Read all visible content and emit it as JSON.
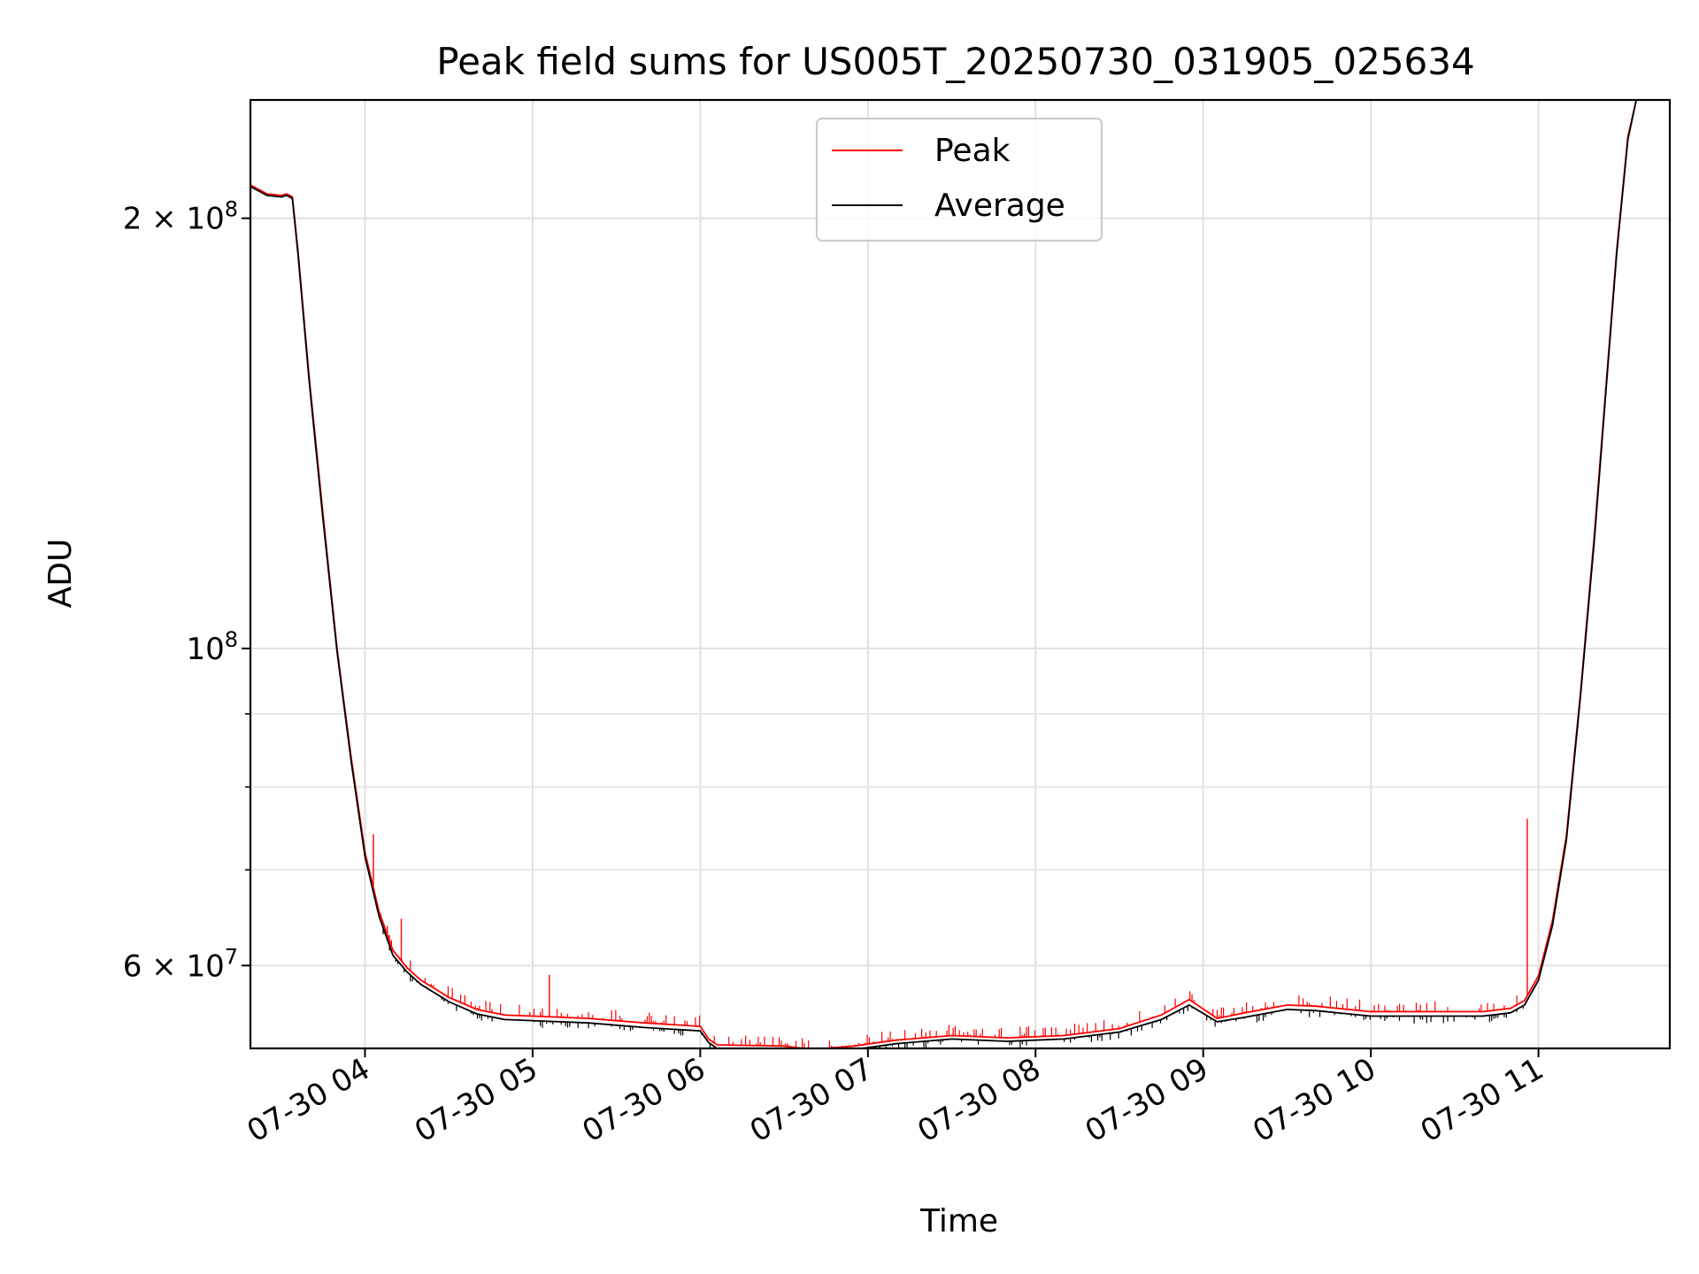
{
  "chart_data": {
    "type": "line",
    "title": "Peak field sums for US005T_20250730_031905_025634",
    "xlabel": "Time",
    "ylabel": "ADU",
    "yscale": "log",
    "xlim": [
      "2025-07-30 03:19",
      "2025-07-30 11:47"
    ],
    "ylim": [
      52500000,
      242000000
    ],
    "grid": true,
    "legend_position": "top-center",
    "x_ticks": [
      {
        "t": "2025-07-30 04:00",
        "label": "07-30 04"
      },
      {
        "t": "2025-07-30 05:00",
        "label": "07-30 05"
      },
      {
        "t": "2025-07-30 06:00",
        "label": "07-30 06"
      },
      {
        "t": "2025-07-30 07:00",
        "label": "07-30 07"
      },
      {
        "t": "2025-07-30 08:00",
        "label": "07-30 08"
      },
      {
        "t": "2025-07-30 09:00",
        "label": "07-30 09"
      },
      {
        "t": "2025-07-30 10:00",
        "label": "07-30 10"
      },
      {
        "t": "2025-07-30 11:00",
        "label": "07-30 11"
      }
    ],
    "y_major_ticks": [
      {
        "v": 60000000,
        "label": "6 × 10",
        "exp": "7"
      },
      {
        "v": 100000000,
        "label": "10",
        "exp": "8"
      },
      {
        "v": 200000000,
        "label": "2 × 10",
        "exp": "8"
      }
    ],
    "y_minor_ticks": [
      70000000,
      80000000,
      90000000
    ],
    "series": [
      {
        "name": "Peak",
        "color": "#ff0000",
        "x": [
          "2025-07-30 03:19",
          "2025-07-30 03:25",
          "2025-07-30 03:30",
          "2025-07-30 03:32",
          "2025-07-30 03:34",
          "2025-07-30 03:36",
          "2025-07-30 03:40",
          "2025-07-30 03:45",
          "2025-07-30 03:50",
          "2025-07-30 03:55",
          "2025-07-30 04:00",
          "2025-07-30 04:05",
          "2025-07-30 04:10",
          "2025-07-30 04:15",
          "2025-07-30 04:20",
          "2025-07-30 04:25",
          "2025-07-30 04:30",
          "2025-07-30 04:40",
          "2025-07-30 04:50",
          "2025-07-30 05:00",
          "2025-07-30 05:20",
          "2025-07-30 05:40",
          "2025-07-30 06:00",
          "2025-07-30 06:03",
          "2025-07-30 06:06",
          "2025-07-30 06:30",
          "2025-07-30 06:40",
          "2025-07-30 06:55",
          "2025-07-30 07:10",
          "2025-07-30 07:30",
          "2025-07-30 07:50",
          "2025-07-30 08:10",
          "2025-07-30 08:30",
          "2025-07-30 08:45",
          "2025-07-30 08:55",
          "2025-07-30 09:05",
          "2025-07-30 09:15",
          "2025-07-30 09:30",
          "2025-07-30 09:40",
          "2025-07-30 10:00",
          "2025-07-30 10:20",
          "2025-07-30 10:40",
          "2025-07-30 10:50",
          "2025-07-30 10:55",
          "2025-07-30 11:00",
          "2025-07-30 11:05",
          "2025-07-30 11:10",
          "2025-07-30 11:15",
          "2025-07-30 11:20",
          "2025-07-30 11:25",
          "2025-07-30 11:28",
          "2025-07-30 11:32",
          "2025-07-30 11:35",
          "2025-07-30 11:47"
        ],
        "values": [
          211000000,
          208000000,
          207500000,
          208000000,
          207000000,
          190000000,
          155000000,
          124000000,
          100000000,
          84000000,
          72000000,
          65500000,
          61500000,
          59800000,
          58600000,
          57800000,
          57000000,
          55900000,
          55400000,
          55300000,
          55100000,
          54700000,
          54400000,
          53300000,
          52800000,
          52700000,
          52400000,
          52700000,
          53200000,
          53600000,
          53400000,
          53600000,
          54200000,
          55400000,
          56800000,
          55100000,
          55600000,
          56300000,
          56200000,
          55700000,
          55700000,
          55700000,
          56000000,
          56700000,
          59000000,
          64500000,
          74000000,
          93000000,
          120000000,
          160000000,
          190000000,
          228000000,
          242000000,
          242000000
        ]
      },
      {
        "name": "Average",
        "color": "#000000",
        "x": [
          "2025-07-30 03:19",
          "2025-07-30 03:25",
          "2025-07-30 03:30",
          "2025-07-30 03:32",
          "2025-07-30 03:34",
          "2025-07-30 03:36",
          "2025-07-30 03:40",
          "2025-07-30 03:45",
          "2025-07-30 03:50",
          "2025-07-30 03:55",
          "2025-07-30 04:00",
          "2025-07-30 04:05",
          "2025-07-30 04:10",
          "2025-07-30 04:15",
          "2025-07-30 04:20",
          "2025-07-30 04:25",
          "2025-07-30 04:30",
          "2025-07-30 04:40",
          "2025-07-30 04:50",
          "2025-07-30 05:00",
          "2025-07-30 05:20",
          "2025-07-30 05:40",
          "2025-07-30 06:00",
          "2025-07-30 06:03",
          "2025-07-30 06:06",
          "2025-07-30 06:30",
          "2025-07-30 06:40",
          "2025-07-30 06:55",
          "2025-07-30 07:10",
          "2025-07-30 07:30",
          "2025-07-30 07:50",
          "2025-07-30 08:10",
          "2025-07-30 08:30",
          "2025-07-30 08:45",
          "2025-07-30 08:55",
          "2025-07-30 09:05",
          "2025-07-30 09:15",
          "2025-07-30 09:30",
          "2025-07-30 09:40",
          "2025-07-30 10:00",
          "2025-07-30 10:20",
          "2025-07-30 10:40",
          "2025-07-30 10:50",
          "2025-07-30 10:55",
          "2025-07-30 11:00",
          "2025-07-30 11:05",
          "2025-07-30 11:10",
          "2025-07-30 11:15",
          "2025-07-30 11:20",
          "2025-07-30 11:25",
          "2025-07-30 11:28",
          "2025-07-30 11:32",
          "2025-07-30 11:35",
          "2025-07-30 11:47"
        ],
        "values": [
          210500000,
          207500000,
          207000000,
          207500000,
          206500000,
          189000000,
          154000000,
          123000000,
          99500000,
          83500000,
          71500000,
          65000000,
          61000000,
          59400000,
          58200000,
          57400000,
          56600000,
          55500000,
          55000000,
          54900000,
          54700000,
          54300000,
          54000000,
          53000000,
          52500000,
          52400000,
          52100000,
          52400000,
          52900000,
          53300000,
          53100000,
          53300000,
          53900000,
          55000000,
          56300000,
          54800000,
          55200000,
          55900000,
          55800000,
          55300000,
          55300000,
          55300000,
          55600000,
          56300000,
          58600000,
          64000000,
          73500000,
          92500000,
          119000000,
          159000000,
          189000000,
          227000000,
          242000000,
          242000000
        ]
      }
    ]
  }
}
